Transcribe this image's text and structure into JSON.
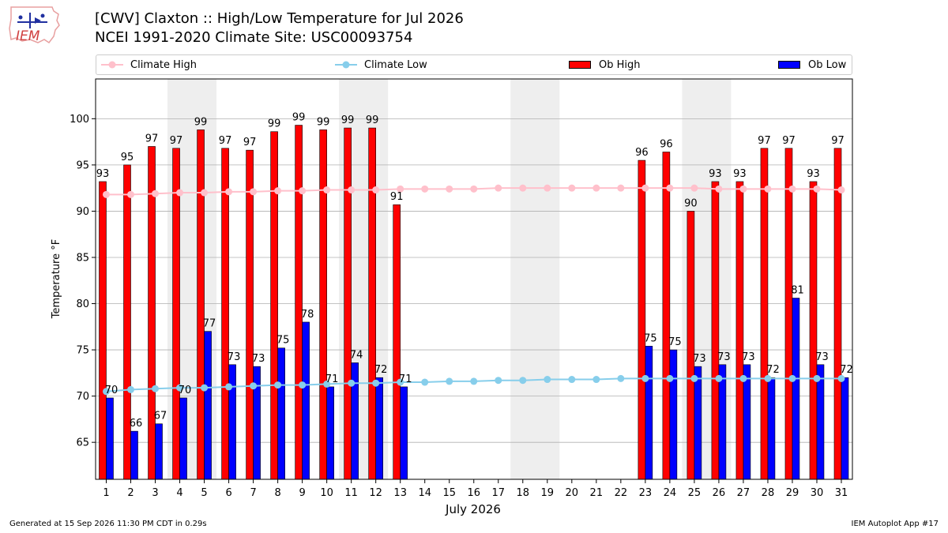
{
  "header": {
    "title_line1": "[CWV] Claxton :: High/Low Temperature for Jul 2026",
    "title_line2": "NCEI 1991-2020 Climate Site: USC00093754",
    "logo_text": "IEM"
  },
  "footer": {
    "left": "Generated at 15 Sep 2026 11:30 PM CDT in 0.29s",
    "right": "IEM Autoplot App #17"
  },
  "colors": {
    "ob_high": "#ff0000",
    "ob_low": "#0000ff",
    "climate_high": "#ffc0cb",
    "climate_low": "#87ceeb",
    "weekend_shade": "#eeeeee",
    "grid": "#b0b0b0"
  },
  "chart_data": {
    "type": "bar",
    "xlabel": "July 2026",
    "ylabel": "Temperature °F",
    "ylim": [
      61,
      104.3
    ],
    "yticks": [
      65,
      70,
      75,
      80,
      85,
      90,
      95,
      100
    ],
    "grid": "horizontal",
    "legend_placement": "top",
    "categories": [
      "1",
      "2",
      "3",
      "4",
      "5",
      "6",
      "7",
      "8",
      "9",
      "10",
      "11",
      "12",
      "13",
      "14",
      "15",
      "16",
      "17",
      "18",
      "19",
      "20",
      "21",
      "22",
      "23",
      "24",
      "25",
      "26",
      "27",
      "28",
      "29",
      "30",
      "31"
    ],
    "shaded_days": [
      [
        4,
        5
      ],
      [
        11,
        12
      ],
      [
        18,
        19
      ],
      [
        25,
        26
      ]
    ],
    "series": [
      {
        "name": "Ob High",
        "kind": "bar",
        "values": [
          93.2,
          95.0,
          97.0,
          96.8,
          98.8,
          96.8,
          96.6,
          98.6,
          99.3,
          98.8,
          99.0,
          99.0,
          90.7,
          null,
          null,
          null,
          null,
          null,
          null,
          null,
          null,
          null,
          95.5,
          96.4,
          90.0,
          93.2,
          93.2,
          96.8,
          96.8,
          93.2,
          96.8
        ],
        "labels": [
          "93",
          "95",
          "97",
          "97",
          "99",
          "97",
          "97",
          "99",
          "99",
          "99",
          "99",
          "99",
          "91",
          "",
          "",
          "",
          "",
          "",
          "",
          "",
          "",
          "",
          "96",
          "96",
          "90",
          "93",
          "93",
          "97",
          "97",
          "93",
          "97"
        ]
      },
      {
        "name": "Ob Low",
        "kind": "bar",
        "values": [
          69.8,
          66.2,
          67.0,
          69.8,
          77.0,
          73.4,
          73.2,
          75.2,
          78.0,
          71.0,
          73.6,
          72.0,
          71.0,
          null,
          null,
          null,
          null,
          null,
          null,
          null,
          null,
          null,
          75.4,
          75.0,
          73.2,
          73.4,
          73.4,
          72.0,
          80.6,
          73.4,
          72.0
        ],
        "labels": [
          "70",
          "66",
          "67",
          "70",
          "77",
          "73",
          "73",
          "75",
          "78",
          "71",
          "74",
          "72",
          "71",
          "",
          "",
          "",
          "",
          "",
          "",
          "",
          "",
          "",
          "75",
          "75",
          "73",
          "73",
          "73",
          "72",
          "81",
          "73",
          "72"
        ]
      },
      {
        "name": "Climate High",
        "kind": "line",
        "values": [
          91.8,
          91.8,
          91.9,
          92.0,
          92.0,
          92.1,
          92.1,
          92.2,
          92.2,
          92.3,
          92.3,
          92.3,
          92.4,
          92.4,
          92.4,
          92.4,
          92.5,
          92.5,
          92.5,
          92.5,
          92.5,
          92.5,
          92.5,
          92.5,
          92.5,
          92.4,
          92.4,
          92.4,
          92.4,
          92.4,
          92.3
        ]
      },
      {
        "name": "Climate Low",
        "kind": "line",
        "values": [
          70.5,
          70.7,
          70.8,
          70.9,
          70.9,
          71.0,
          71.1,
          71.2,
          71.2,
          71.3,
          71.4,
          71.4,
          71.5,
          71.5,
          71.6,
          71.6,
          71.7,
          71.7,
          71.8,
          71.8,
          71.8,
          71.9,
          71.9,
          71.9,
          71.9,
          71.9,
          71.9,
          71.9,
          71.9,
          71.9,
          71.9
        ]
      }
    ]
  }
}
